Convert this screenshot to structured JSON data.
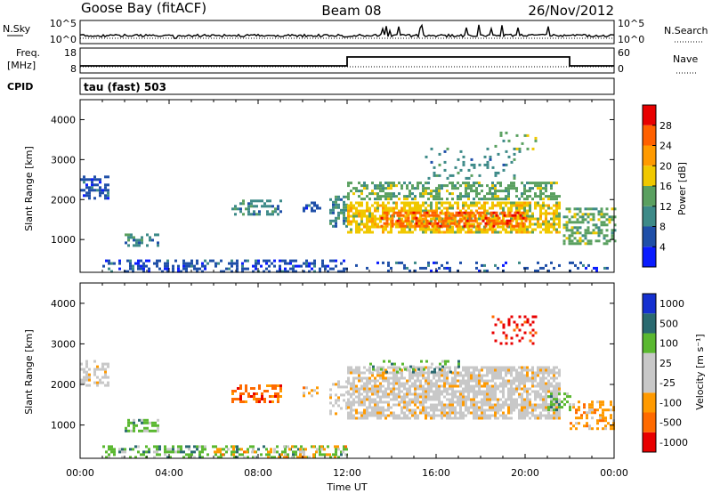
{
  "header": {
    "station": "Goose Bay (fitACF)",
    "beam": "Beam 08",
    "date": "26/Nov/2012"
  },
  "strip1": {
    "left_label": "N.Sky",
    "left_ticks": [
      "10^5",
      "10^0"
    ],
    "right_ticks": [
      "10^5",
      "10^0"
    ],
    "right_label": "N.Search"
  },
  "strip2": {
    "left_label_1": "Freq.",
    "left_label_2": "[MHz]",
    "left_ticks": [
      "18",
      "8"
    ],
    "right_ticks": [
      "60",
      "0"
    ],
    "right_label": "Nave",
    "cpid_label": "CPID",
    "program": "tau (fast) 503"
  },
  "colors": {
    "power": [
      "#0a1cff",
      "#1f4fa8",
      "#3d8a88",
      "#5aa060",
      "#f0c800",
      "#ff9a00",
      "#ff6000",
      "#e80000"
    ],
    "velocity": [
      "#e80000",
      "#ff6a00",
      "#ff9a00",
      "#c8c8c8",
      "#c8c8c8",
      "#5ab830",
      "#2a6a70",
      "#1530d0"
    ]
  },
  "chart_data": [
    {
      "type": "heatmap",
      "name": "power-panel",
      "xlabel": "",
      "ylabel": "Slant Range [km]",
      "y_ticks": [
        "1000",
        "2000",
        "3000",
        "4000"
      ],
      "colorbar": {
        "label": "Power [dB]",
        "ticks": [
          "4",
          "8",
          "12",
          "16",
          "20",
          "24",
          "28"
        ]
      },
      "regions": [
        {
          "t0": 0.0,
          "t1": 1.3,
          "r0": 2000,
          "r1": 2600,
          "level": 1,
          "density": 0.55
        },
        {
          "t0": 2.0,
          "t1": 3.5,
          "r0": 850,
          "r1": 1150,
          "level": 2,
          "density": 0.45
        },
        {
          "t0": 1.0,
          "t1": 12.0,
          "r0": 200,
          "r1": 500,
          "level": 1,
          "density": 0.45
        },
        {
          "t0": 6.8,
          "t1": 9.0,
          "r0": 1600,
          "r1": 2000,
          "level": 2,
          "density": 0.45
        },
        {
          "t0": 10.0,
          "t1": 10.8,
          "r0": 1700,
          "r1": 1950,
          "level": 1,
          "density": 0.35
        },
        {
          "t0": 11.2,
          "t1": 12.0,
          "r0": 1300,
          "r1": 2100,
          "level": 2,
          "density": 0.45
        },
        {
          "t0": 12.0,
          "t1": 21.5,
          "r0": 2000,
          "r1": 2450,
          "level": 3,
          "density": 0.55
        },
        {
          "t0": 12.0,
          "t1": 21.5,
          "r0": 1200,
          "r1": 1950,
          "level": 4,
          "density": 0.7
        },
        {
          "t0": 13.5,
          "t1": 20.0,
          "r0": 1300,
          "r1": 1700,
          "level": 6,
          "density": 0.55
        },
        {
          "t0": 15.5,
          "t1": 19.5,
          "r0": 2500,
          "r1": 3300,
          "level": 2,
          "density": 0.12
        },
        {
          "t0": 18.5,
          "t1": 20.5,
          "r0": 3200,
          "r1": 3700,
          "level": 3,
          "density": 0.15
        },
        {
          "t0": 21.7,
          "t1": 24.0,
          "r0": 900,
          "r1": 1800,
          "level": 3,
          "density": 0.5
        },
        {
          "t0": 12.0,
          "t1": 24.0,
          "r0": 200,
          "r1": 450,
          "level": 1,
          "density": 0.15
        }
      ]
    },
    {
      "type": "heatmap",
      "name": "velocity-panel",
      "xlabel": "Time UT",
      "ylabel": "Slant Range [km]",
      "x_ticks": [
        "00:00",
        "04:00",
        "08:00",
        "12:00",
        "16:00",
        "20:00",
        "00:00"
      ],
      "y_ticks": [
        "1000",
        "2000",
        "3000",
        "4000"
      ],
      "colorbar": {
        "label": "Velocity [m s⁻¹]",
        "ticks": [
          "-1000",
          "-500",
          "-100",
          "-25",
          "25",
          "100",
          "500",
          "1000"
        ]
      },
      "regions": [
        {
          "t0": 0.0,
          "t1": 1.3,
          "r0": 2000,
          "r1": 2600,
          "level": 3,
          "density": 0.5
        },
        {
          "t0": 2.0,
          "t1": 3.5,
          "r0": 850,
          "r1": 1150,
          "level": 5,
          "density": 0.4
        },
        {
          "t0": 1.0,
          "t1": 12.0,
          "r0": 200,
          "r1": 500,
          "level": 5,
          "density": 0.4
        },
        {
          "t0": 6.0,
          "t1": 12.0,
          "r0": 200,
          "r1": 500,
          "level": 2,
          "density": 0.25
        },
        {
          "t0": 6.8,
          "t1": 9.0,
          "r0": 1600,
          "r1": 2000,
          "level": 1,
          "density": 0.5
        },
        {
          "t0": 10.0,
          "t1": 10.8,
          "r0": 1700,
          "r1": 1950,
          "level": 2,
          "density": 0.35
        },
        {
          "t0": 11.2,
          "t1": 12.0,
          "r0": 1300,
          "r1": 2100,
          "level": 3,
          "density": 0.4
        },
        {
          "t0": 12.0,
          "t1": 21.5,
          "r0": 1200,
          "r1": 2450,
          "level": 3,
          "density": 0.75
        },
        {
          "t0": 13.0,
          "t1": 17.0,
          "r0": 2300,
          "r1": 2600,
          "level": 5,
          "density": 0.2
        },
        {
          "t0": 18.5,
          "t1": 20.5,
          "r0": 3000,
          "r1": 3700,
          "level": 0,
          "density": 0.18
        },
        {
          "t0": 21.0,
          "t1": 22.0,
          "r0": 1400,
          "r1": 1800,
          "level": 5,
          "density": 0.5
        },
        {
          "t0": 22.0,
          "t1": 24.0,
          "r0": 900,
          "r1": 1600,
          "level": 2,
          "density": 0.45
        }
      ]
    }
  ]
}
